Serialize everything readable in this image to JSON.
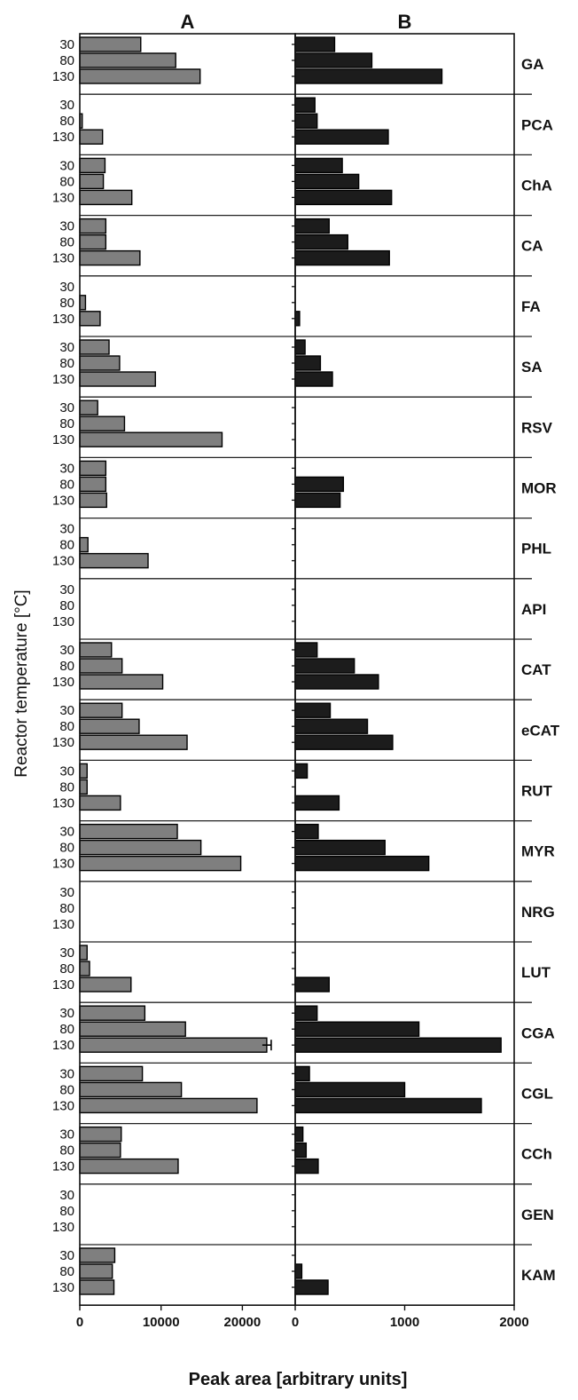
{
  "chart_data": {
    "type": "bar",
    "orientation": "horizontal",
    "panels": [
      {
        "name": "A",
        "xlim": [
          0,
          26500
        ],
        "ticks": [
          0,
          10000,
          20000
        ],
        "tick_labels": [
          "0",
          "10000",
          "20000"
        ],
        "color": "#7f7f7f"
      },
      {
        "name": "B",
        "xlim": [
          0,
          2000
        ],
        "ticks": [
          0,
          1000,
          2000
        ],
        "tick_labels": [
          "0",
          "1000",
          "2000"
        ],
        "color": "#1c1c1c"
      }
    ],
    "ylabel": "Reactor temperature [°C]",
    "xlabel": "Peak area [arbitrary units]",
    "temperatures": [
      "30",
      "80",
      "130"
    ],
    "compounds": [
      {
        "name": "GA",
        "A": [
          7500,
          11800,
          14800
        ],
        "B": [
          360,
          700,
          1340
        ]
      },
      {
        "name": "PCA",
        "A": [
          0,
          300,
          2800
        ],
        "B": [
          180,
          200,
          850
        ]
      },
      {
        "name": "ChA",
        "A": [
          3100,
          2900,
          6400
        ],
        "B": [
          430,
          580,
          880
        ]
      },
      {
        "name": "CA",
        "A": [
          3200,
          3200,
          7400
        ],
        "B": [
          310,
          480,
          860
        ]
      },
      {
        "name": "FA",
        "A": [
          0,
          700,
          2500
        ],
        "B": [
          0,
          0,
          40
        ]
      },
      {
        "name": "SA",
        "A": [
          3600,
          4900,
          9300
        ],
        "B": [
          90,
          230,
          340
        ]
      },
      {
        "name": "RSV",
        "A": [
          2200,
          5500,
          17500
        ],
        "B": [
          0,
          0,
          0
        ]
      },
      {
        "name": "MOR",
        "A": [
          3200,
          3200,
          3300
        ],
        "B": [
          0,
          440,
          410
        ]
      },
      {
        "name": "PHL",
        "A": [
          0,
          1000,
          8400
        ],
        "B": [
          0,
          0,
          0
        ]
      },
      {
        "name": "API",
        "A": [
          0,
          0,
          0
        ],
        "B": [
          0,
          0,
          0
        ]
      },
      {
        "name": "CAT",
        "A": [
          3900,
          5200,
          10200
        ],
        "B": [
          200,
          540,
          760
        ]
      },
      {
        "name": "eCAT",
        "A": [
          5200,
          7300,
          13200
        ],
        "B": [
          320,
          660,
          890
        ]
      },
      {
        "name": "RUT",
        "A": [
          900,
          900,
          5000
        ],
        "B": [
          110,
          0,
          400
        ]
      },
      {
        "name": "MYR",
        "A": [
          12000,
          14900,
          19800
        ],
        "B": [
          210,
          820,
          1220
        ]
      },
      {
        "name": "NRG",
        "A": [
          0,
          0,
          0
        ],
        "B": [
          0,
          0,
          0
        ]
      },
      {
        "name": "LUT",
        "A": [
          900,
          1200,
          6300
        ],
        "B": [
          0,
          0,
          310
        ]
      },
      {
        "name": "CGA",
        "A": [
          8000,
          13000,
          23000
        ],
        "B": [
          200,
          1130,
          1880
        ]
      },
      {
        "name": "CGL",
        "A": [
          7700,
          12500,
          21800
        ],
        "B": [
          130,
          1000,
          1700
        ]
      },
      {
        "name": "CCh",
        "A": [
          5100,
          5000,
          12100
        ],
        "B": [
          70,
          100,
          210
        ]
      },
      {
        "name": "GEN",
        "A": [
          0,
          0,
          0
        ],
        "B": [
          0,
          0,
          0
        ]
      },
      {
        "name": "KAM",
        "A": [
          4300,
          4000,
          4200
        ],
        "B": [
          0,
          60,
          300
        ]
      }
    ]
  }
}
